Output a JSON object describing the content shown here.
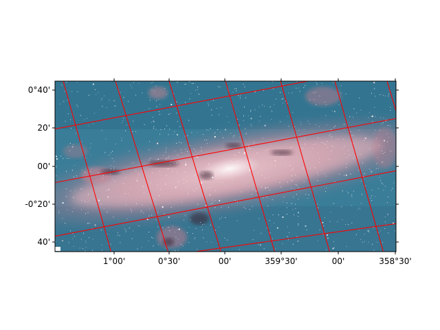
{
  "image": {
    "subject": "infrared-galactic-center-mosaic",
    "colors": {
      "sky": "#2e6f8e",
      "nebula": "#d98a96",
      "core": "#f0d6dc",
      "dust": "#3a2430",
      "grid": "#ff0000"
    }
  },
  "axes": {
    "x_tick_labels": [
      "1°00'",
      "0°30'",
      "00'",
      "359°30'",
      "00'",
      "358°30'"
    ],
    "y_tick_labels": [
      "0°40'",
      "20'",
      "00'",
      "-0°20'",
      "40'"
    ]
  }
}
